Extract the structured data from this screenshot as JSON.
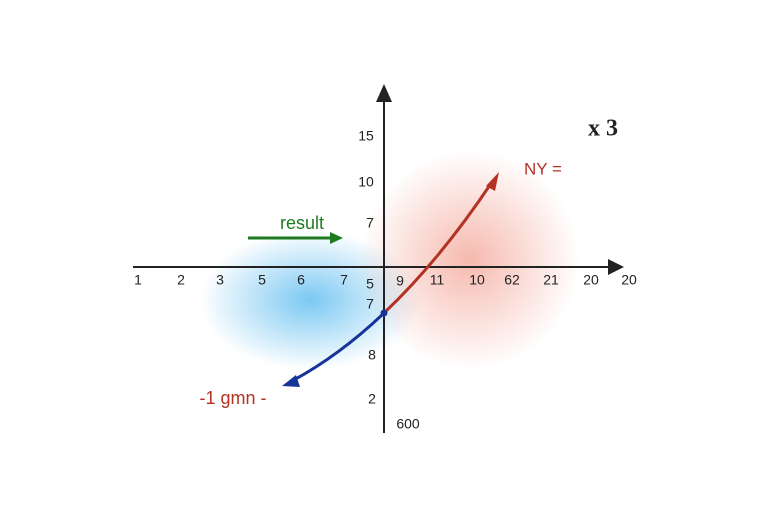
{
  "title": "x 3",
  "x_axis_labels": [
    "1",
    "2",
    "3",
    "5",
    "6",
    "7",
    "5",
    "9",
    "11",
    "10",
    "62",
    "21",
    "20",
    "20"
  ],
  "y_axis_labels_upper": [
    "15",
    "10",
    "7"
  ],
  "y_axis_labels_lower": [
    "7",
    "8",
    "2",
    "600"
  ],
  "annotations": {
    "result": "result",
    "ny": "NY =",
    "gmn": "-1 gmn -"
  }
}
